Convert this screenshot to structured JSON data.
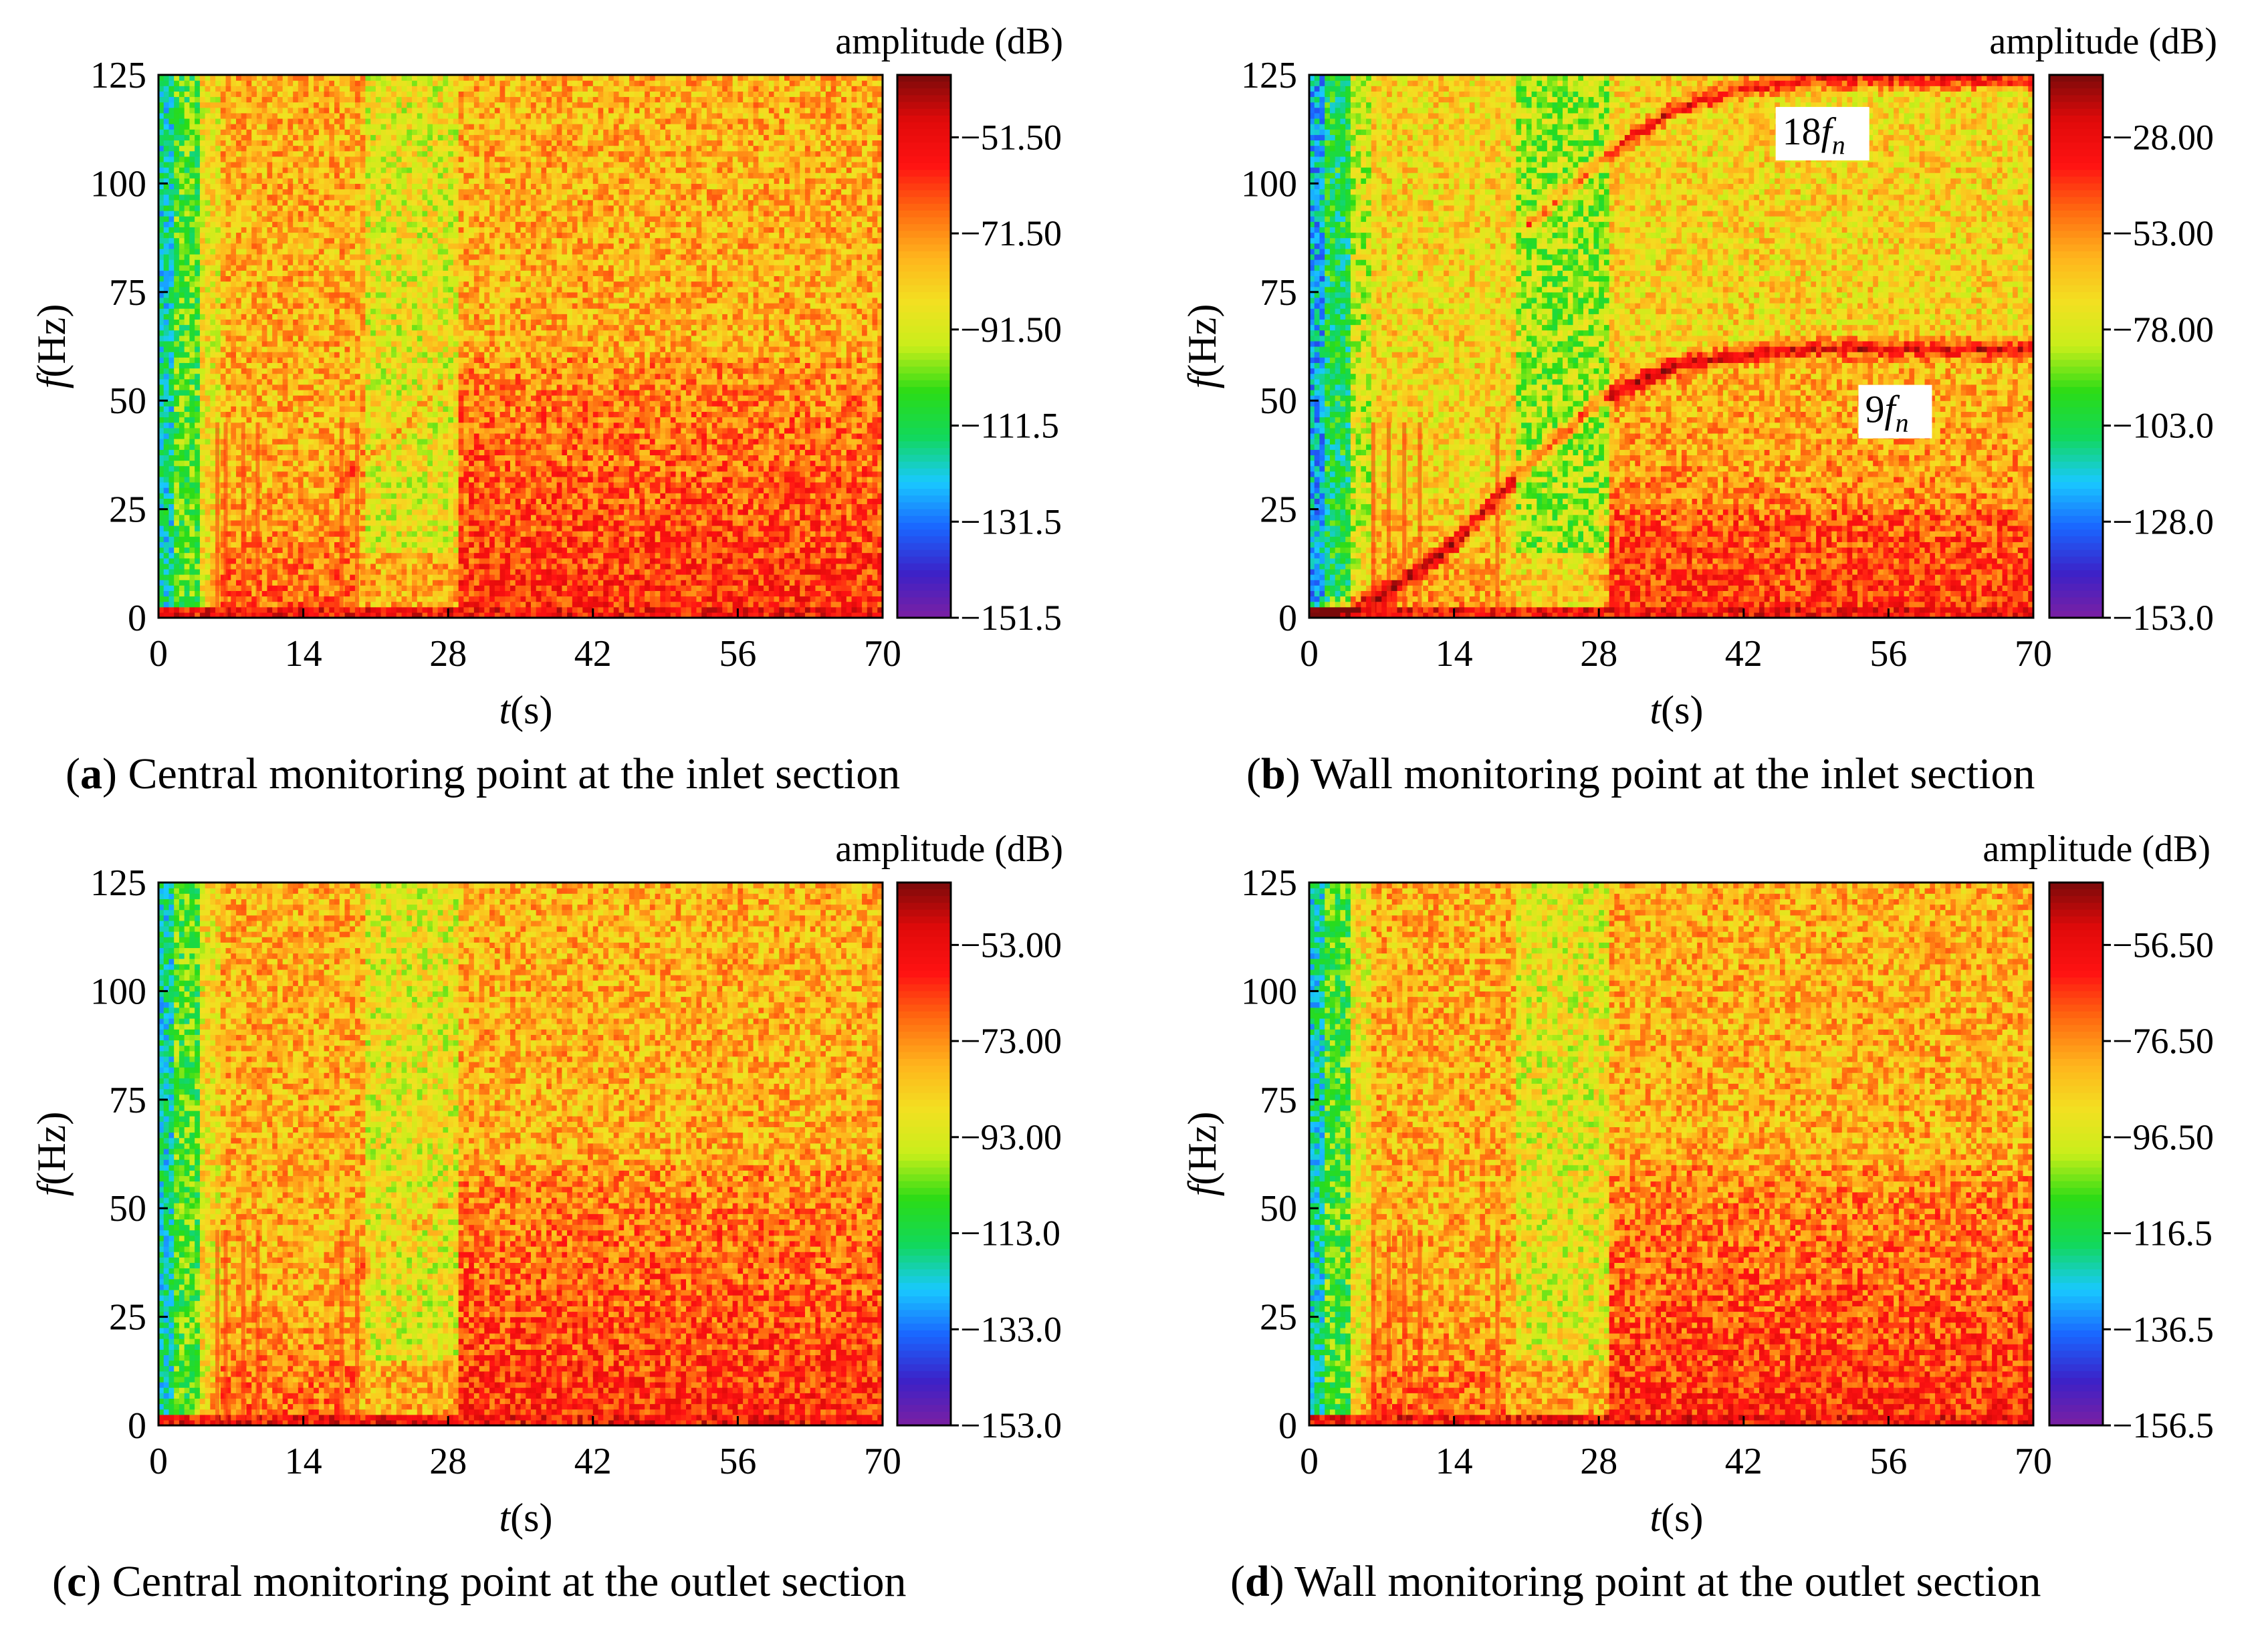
{
  "colorbar_colors": [
    "#7b1fa2",
    "#3b22c8",
    "#1a66ff",
    "#19c9ff",
    "#12d85a",
    "#2bdc16",
    "#c9ee1a",
    "#f3e021",
    "#ffb21c",
    "#ff6a10",
    "#ff1212",
    "#e00a0a",
    "#7a0a0a"
  ],
  "chart_data": [
    {
      "type": "heatmap",
      "panel_id": "a",
      "caption_letter": "a",
      "caption_text": "Central monitoring point at the inlet section",
      "xlabel_var": "t",
      "xlabel_unit": "(s)",
      "ylabel_var": "f",
      "ylabel_unit": "(Hz)",
      "x_ticks": [
        "0",
        "14",
        "28",
        "42",
        "56",
        "70"
      ],
      "y_ticks": [
        "0",
        "25",
        "50",
        "75",
        "100",
        "125"
      ],
      "xlim": [
        0,
        70
      ],
      "ylim": [
        0,
        125
      ],
      "colorbar_title": "amplitude (dB)",
      "colorbar_ticks": [
        "−51.50",
        "−71.50",
        "−91.50",
        "−111.5",
        "−131.5",
        "−151.5"
      ],
      "clim": [
        -151.5,
        -40
      ],
      "ridges": [
        {
          "points": [
            [
              17,
              30
            ],
            [
              22,
              40
            ],
            [
              28,
              55
            ]
          ],
          "strength": 0.35
        }
      ],
      "annotations": []
    },
    {
      "type": "heatmap",
      "panel_id": "b",
      "caption_letter": "b",
      "caption_text": "Wall monitoring point at the inlet section",
      "xlabel_var": "t",
      "xlabel_unit": "(s)",
      "ylabel_var": "f",
      "ylabel_unit": "(Hz)",
      "x_ticks": [
        "0",
        "14",
        "28",
        "42",
        "56",
        "70"
      ],
      "y_ticks": [
        "0",
        "25",
        "50",
        "75",
        "100",
        "125"
      ],
      "xlim": [
        0,
        70
      ],
      "ylim": [
        0,
        125
      ],
      "colorbar_title": "amplitude (dB)",
      "colorbar_ticks": [
        "−28.00",
        "−53.00",
        "−78.00",
        "−103.0",
        "−128.0",
        "−153.0"
      ],
      "clim": [
        -153,
        -20
      ],
      "ridges": [
        {
          "points": [
            [
              0,
              0
            ],
            [
              7,
              5
            ],
            [
              14,
              17
            ],
            [
              21,
              35
            ],
            [
              28,
              50
            ],
            [
              35,
              58
            ],
            [
              42,
              61
            ],
            [
              49,
              62
            ],
            [
              56,
              62
            ],
            [
              70,
              62
            ]
          ],
          "strength": 1.0
        },
        {
          "points": [
            [
              21,
              90
            ],
            [
              28,
              105
            ],
            [
              35,
              117
            ],
            [
              42,
              122
            ],
            [
              49,
              124
            ],
            [
              56,
              124
            ],
            [
              70,
              124
            ]
          ],
          "strength": 0.9
        }
      ],
      "annotations": [
        {
          "text_main": "18",
          "text_f": "f",
          "text_sub": "n",
          "t": 46,
          "f": 109
        },
        {
          "text_main": "9",
          "text_f": "f",
          "text_sub": "n",
          "t": 54,
          "f": 45
        }
      ]
    },
    {
      "type": "heatmap",
      "panel_id": "c",
      "caption_letter": "c",
      "caption_text": "Central monitoring point at the outlet section",
      "xlabel_var": "t",
      "xlabel_unit": "(s)",
      "ylabel_var": "f",
      "ylabel_unit": "(Hz)",
      "x_ticks": [
        "0",
        "14",
        "28",
        "42",
        "56",
        "70"
      ],
      "y_ticks": [
        "0",
        "25",
        "50",
        "75",
        "100",
        "125"
      ],
      "xlim": [
        0,
        70
      ],
      "ylim": [
        0,
        125
      ],
      "colorbar_title": "amplitude (dB)",
      "colorbar_ticks": [
        "−53.00",
        "−73.00",
        "−93.00",
        "−113.0",
        "−133.0",
        "−153.0"
      ],
      "clim": [
        -153,
        -42
      ],
      "ridges": [
        {
          "points": [
            [
              17,
              30
            ],
            [
              22,
              40
            ],
            [
              28,
              52
            ]
          ],
          "strength": 0.3
        }
      ],
      "annotations": []
    },
    {
      "type": "heatmap",
      "panel_id": "d",
      "caption_letter": "d",
      "caption_text": "Wall monitoring point at the outlet section",
      "xlabel_var": "t",
      "xlabel_unit": "(s)",
      "ylabel_var": "f",
      "ylabel_unit": "(Hz)",
      "x_ticks": [
        "0",
        "14",
        "28",
        "42",
        "56",
        "70"
      ],
      "y_ticks": [
        "0",
        "25",
        "50",
        "75",
        "100",
        "125"
      ],
      "xlim": [
        0,
        70
      ],
      "ylim": [
        0,
        125
      ],
      "colorbar_title": "amplitude (dB)",
      "colorbar_ticks": [
        "−56.50",
        "−76.50",
        "−96.50",
        "−116.5",
        "−136.5",
        "−156.5"
      ],
      "clim": [
        -156.5,
        -45
      ],
      "ridges": [],
      "annotations": []
    }
  ]
}
